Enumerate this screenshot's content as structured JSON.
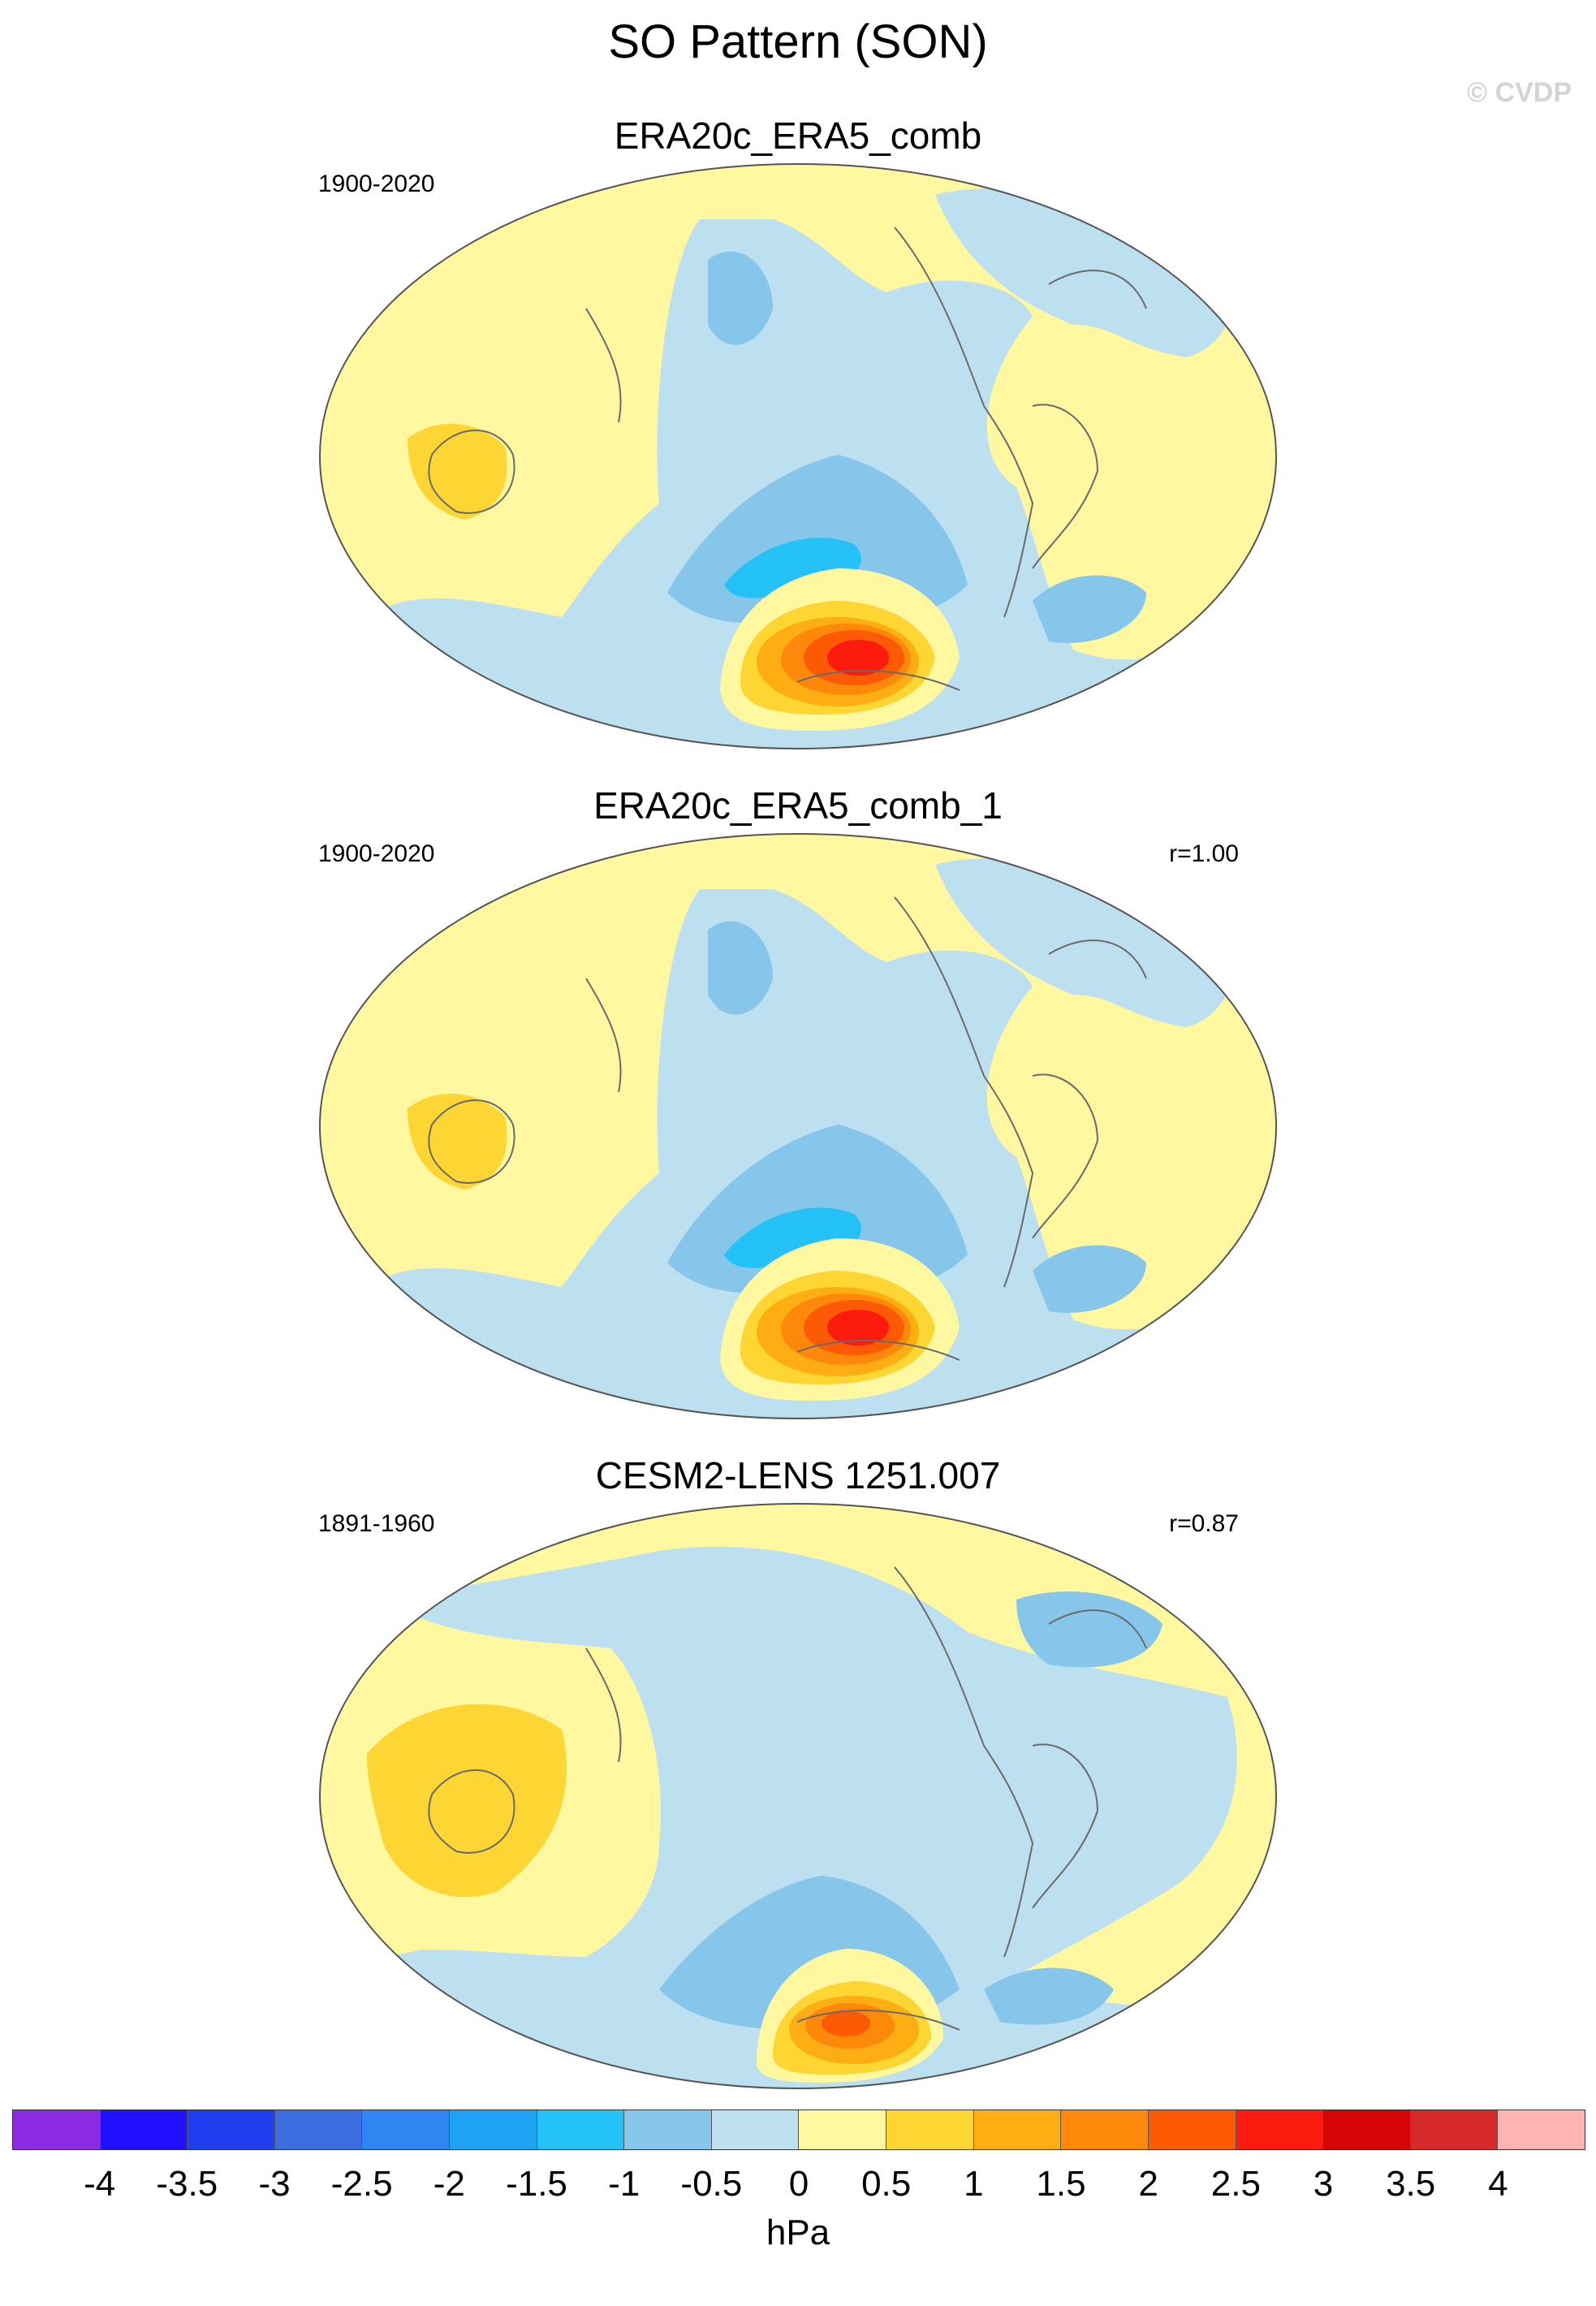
{
  "figure": {
    "title": "SO Pattern (SON)",
    "copyright": "© CVDP"
  },
  "panels": [
    {
      "title": "ERA20c_ERA5_comb",
      "period": "1900-2020",
      "correlation": ""
    },
    {
      "title": "ERA20c_ERA5_comb_1",
      "period": "1900-2020",
      "correlation": "r=1.00"
    },
    {
      "title": "CESM2-LENS 1251.007",
      "period": "1891-1960",
      "correlation": "r=0.87"
    }
  ],
  "colorbar": {
    "unit": "hPa",
    "labels": [
      "-4",
      "-3.5",
      "-3",
      "-2.5",
      "-2",
      "-1.5",
      "-1",
      "-0.5",
      "0",
      "0.5",
      "1",
      "1.5",
      "2",
      "2.5",
      "3",
      "3.5",
      "4"
    ],
    "colors": [
      "#8a2be2",
      "#2010ff",
      "#1f3fef",
      "#3c6ee0",
      "#2f86f2",
      "#1fa3f5",
      "#25c2f7",
      "#86c6ea",
      "#bde0f1",
      "#fff8a0",
      "#fed634",
      "#feae12",
      "#fe880a",
      "#fd5a06",
      "#fd1b0f",
      "#d50505",
      "#d62a2a",
      "#ffb4b4"
    ]
  },
  "map_colors": {
    "ocean_neutral": "#bde0f1",
    "land_neutral": "#fff8a0",
    "coast": "#6a6a6a",
    "outline": "#555555"
  }
}
